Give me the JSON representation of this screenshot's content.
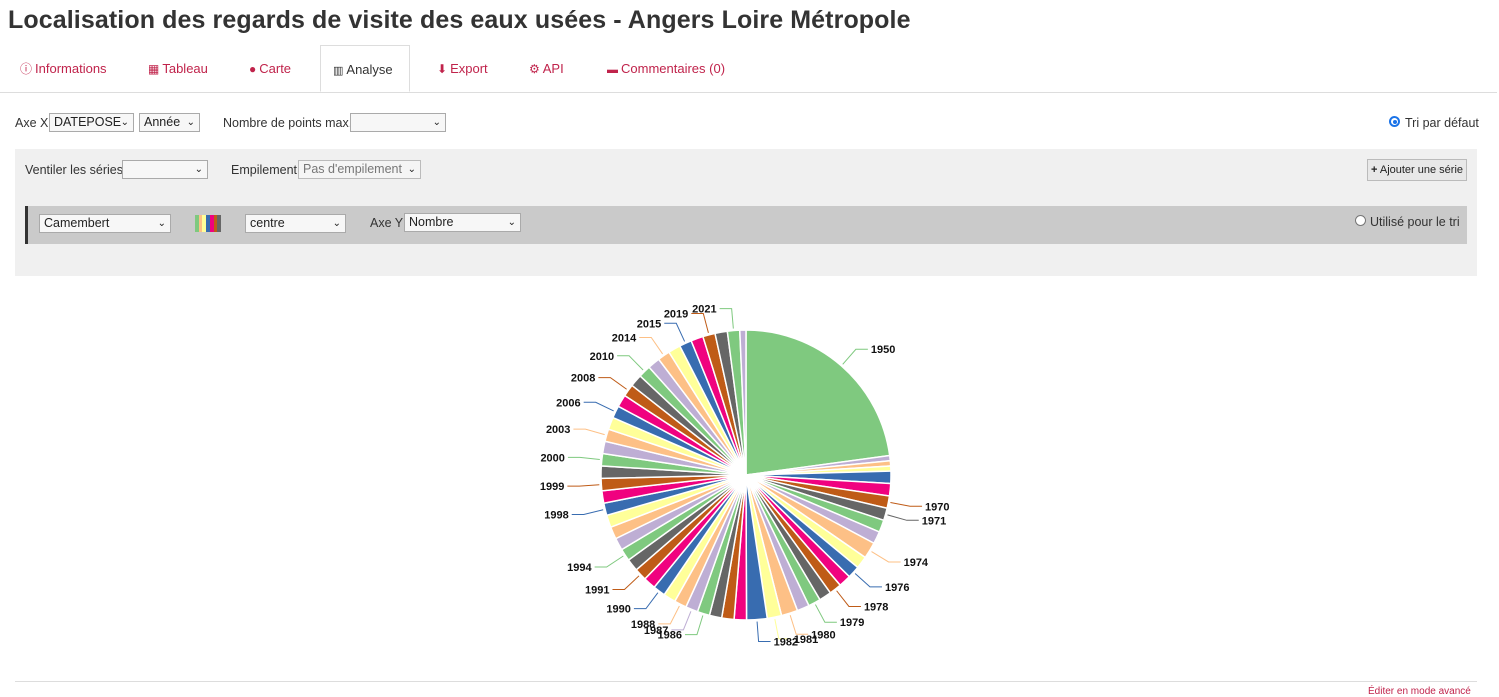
{
  "page": {
    "title": "Localisation des regards de visite des eaux usées - Angers Loire Métropole",
    "footer_link": "Éditer en mode avancé"
  },
  "tabs": [
    {
      "label": "Informations",
      "icon": "info-circle-icon",
      "glyph": "ⓘ",
      "active": false
    },
    {
      "label": "Tableau",
      "icon": "table-icon",
      "glyph": "▦",
      "active": false
    },
    {
      "label": "Carte",
      "icon": "globe-icon",
      "glyph": "●",
      "active": false
    },
    {
      "label": "Analyse",
      "icon": "bar-chart-icon",
      "glyph": "📊",
      "active": true
    },
    {
      "label": "Export",
      "icon": "download-icon",
      "glyph": "⬇",
      "active": false
    },
    {
      "label": "API",
      "icon": "gears-icon",
      "glyph": "⚙",
      "active": false
    },
    {
      "label": "Commentaires (0)",
      "icon": "comments-icon",
      "glyph": "💬",
      "active": false
    }
  ],
  "controls": {
    "axe_x_label": "Axe X",
    "axe_x_field": "DATEPOSE",
    "axe_x_timescale": "Année",
    "max_points_label": "Nombre de points max.",
    "max_points_value": "",
    "default_sort_label": "Tri par défaut",
    "ventiler_label": "Ventiler les séries",
    "ventiler_value": "",
    "empilement_label": "Empilement",
    "empilement_value": "Pas d'empilement",
    "add_series_label": "Ajouter une série",
    "add_series_icon": "plus-icon"
  },
  "series": {
    "chart_type": "Camembert",
    "palette_icon": "color-palette-icon",
    "palette_colors": [
      "#7fc97f",
      "#fdc086",
      "#ffff99",
      "#386cb0",
      "#f0027f",
      "#bf5b17",
      "#666666"
    ],
    "position": "centre",
    "axe_y_label": "Axe Y",
    "axe_y_value": "Nombre",
    "sort_label": "Utilisé pour le tri"
  },
  "chart_data": {
    "type": "pie",
    "colors": [
      "#7fc97f",
      "#beaed4",
      "#fdc086",
      "#ffff99",
      "#386cb0",
      "#f0027f",
      "#bf5b17",
      "#666666"
    ],
    "slices": [
      {
        "label": "1950",
        "value": 20.0
      },
      {
        "label": "",
        "value": 0.5
      },
      {
        "label": "",
        "value": 0.5
      },
      {
        "label": "",
        "value": 0.5
      },
      {
        "label": "",
        "value": 1.2
      },
      {
        "label": "",
        "value": 1.2
      },
      {
        "label": "1970",
        "value": 1.2
      },
      {
        "label": "1971",
        "value": 1.2
      },
      {
        "label": "",
        "value": 1.2
      },
      {
        "label": "",
        "value": 1.2
      },
      {
        "label": "1974",
        "value": 1.6
      },
      {
        "label": "",
        "value": 1.2
      },
      {
        "label": "1976",
        "value": 1.2
      },
      {
        "label": "",
        "value": 1.2
      },
      {
        "label": "1978",
        "value": 1.2
      },
      {
        "label": "",
        "value": 1.2
      },
      {
        "label": "1979",
        "value": 1.2
      },
      {
        "label": "",
        "value": 1.2
      },
      {
        "label": "1980",
        "value": 1.6
      },
      {
        "label": "1981",
        "value": 1.4
      },
      {
        "label": "1982",
        "value": 2.0
      },
      {
        "label": "",
        "value": 1.2
      },
      {
        "label": "",
        "value": 1.2
      },
      {
        "label": "",
        "value": 1.2
      },
      {
        "label": "1986",
        "value": 1.2
      },
      {
        "label": "1987",
        "value": 1.2
      },
      {
        "label": "1988",
        "value": 1.2
      },
      {
        "label": "",
        "value": 1.2
      },
      {
        "label": "1990",
        "value": 1.2
      },
      {
        "label": "",
        "value": 1.2
      },
      {
        "label": "1991",
        "value": 1.2
      },
      {
        "label": "",
        "value": 1.2
      },
      {
        "label": "1994",
        "value": 1.2
      },
      {
        "label": "",
        "value": 1.2
      },
      {
        "label": "",
        "value": 1.2
      },
      {
        "label": "",
        "value": 1.2
      },
      {
        "label": "1998",
        "value": 1.2
      },
      {
        "label": "",
        "value": 1.2
      },
      {
        "label": "1999",
        "value": 1.2
      },
      {
        "label": "",
        "value": 1.2
      },
      {
        "label": "2000",
        "value": 1.2
      },
      {
        "label": "",
        "value": 1.2
      },
      {
        "label": "2003",
        "value": 1.2
      },
      {
        "label": "",
        "value": 1.2
      },
      {
        "label": "2006",
        "value": 1.2
      },
      {
        "label": "",
        "value": 1.2
      },
      {
        "label": "2008",
        "value": 1.2
      },
      {
        "label": "",
        "value": 1.2
      },
      {
        "label": "2010",
        "value": 1.2
      },
      {
        "label": "",
        "value": 1.2
      },
      {
        "label": "2014",
        "value": 1.2
      },
      {
        "label": "",
        "value": 1.2
      },
      {
        "label": "2015",
        "value": 1.2
      },
      {
        "label": "",
        "value": 1.2
      },
      {
        "label": "2019",
        "value": 1.2
      },
      {
        "label": "",
        "value": 1.2
      },
      {
        "label": "2021",
        "value": 1.2
      },
      {
        "label": "",
        "value": 0.6
      }
    ]
  }
}
